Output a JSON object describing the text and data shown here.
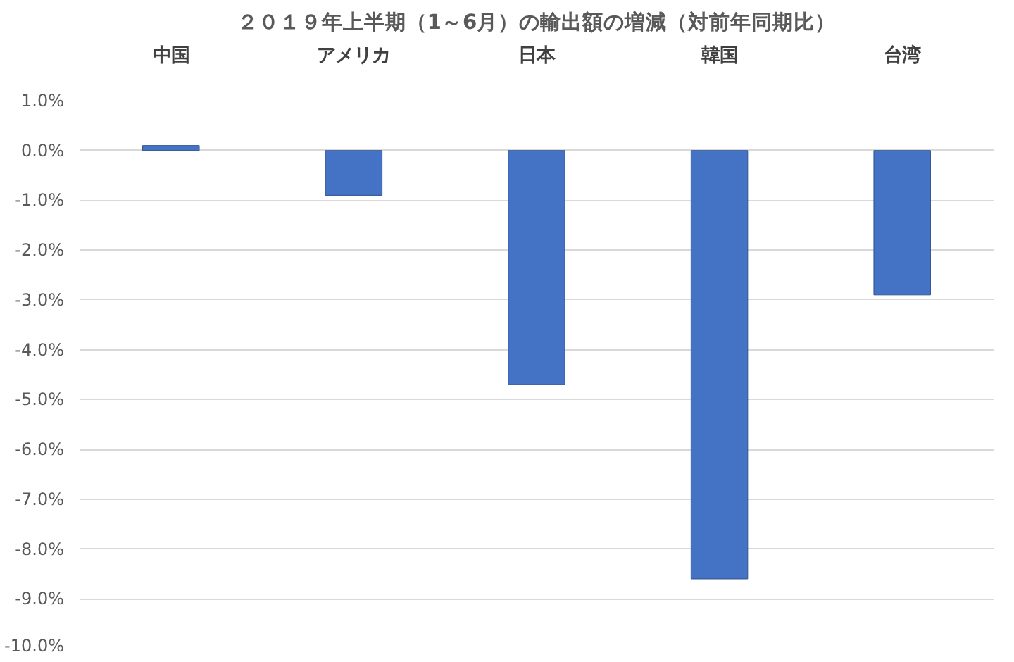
{
  "chart_data": {
    "type": "bar",
    "title": "２０１９年上半期（1～6月）の輸出額の増減（対前年同期比）",
    "categories": [
      "中国",
      "アメリカ",
      "日本",
      "韓国",
      "台湾"
    ],
    "values": [
      0.1,
      -0.9,
      -4.7,
      -8.6,
      -2.9
    ],
    "color": "#4472c4",
    "ylim": [
      -10,
      1
    ],
    "yticks": [
      {
        "value": 1,
        "label": "1.0%"
      },
      {
        "value": 0,
        "label": "0.0%"
      },
      {
        "value": -1,
        "label": "-1.0%"
      },
      {
        "value": -2,
        "label": "-2.0%"
      },
      {
        "value": -3,
        "label": "-3.0%"
      },
      {
        "value": -4,
        "label": "-4.0%"
      },
      {
        "value": -5,
        "label": "-5.0%"
      },
      {
        "value": -6,
        "label": "-6.0%"
      },
      {
        "value": -7,
        "label": "-7.0%"
      },
      {
        "value": -8,
        "label": "-8.0%"
      },
      {
        "value": -9,
        "label": "-9.0%"
      },
      {
        "value": -10,
        "label": "-10.0%"
      }
    ],
    "grid": "y"
  }
}
